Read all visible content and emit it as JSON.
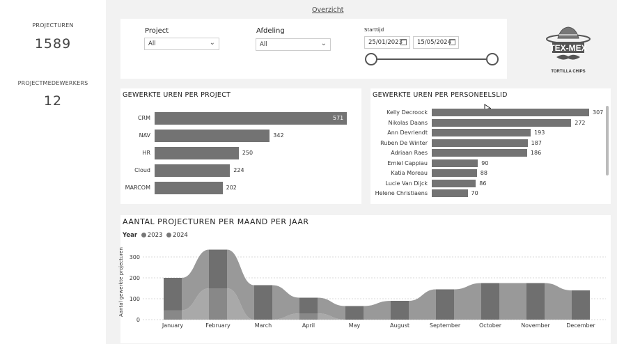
{
  "kpis": {
    "project_hours_label": "PROJECTUREN",
    "project_hours_value": "1589",
    "employees_label": "PROJECTMEDEWERKERS",
    "employees_value": "12"
  },
  "nav": {
    "overview_link": "Overzicht"
  },
  "filters": {
    "project_label": "Project",
    "project_value": "All",
    "department_label": "Afdeling",
    "department_value": "All",
    "start_label": "Starttijd",
    "date_from": "25/01/2023",
    "date_to": "15/05/2024"
  },
  "logo": {
    "line1": "TEX-MEX",
    "line2": "TORTILLA CHIPS"
  },
  "project_chart": {
    "title": "GEWERKTE UREN PER PROJECT",
    "bars": [
      {
        "label": "CRM",
        "value": 571
      },
      {
        "label": "NAV",
        "value": 342
      },
      {
        "label": "HR",
        "value": 250
      },
      {
        "label": "Cloud",
        "value": 224
      },
      {
        "label": "MARCOM",
        "value": 202
      }
    ]
  },
  "employee_chart": {
    "title": "GEWERKTE UREN PER PERSONEELSLID",
    "bars": [
      {
        "label": "Kelly Decroock",
        "value": 307
      },
      {
        "label": "Nikolas Daans",
        "value": 272
      },
      {
        "label": "Ann Devriendt",
        "value": 193
      },
      {
        "label": "Ruben De Winter",
        "value": 187
      },
      {
        "label": "Adriaan Raes",
        "value": 186
      },
      {
        "label": "Emiel Cappiau",
        "value": 90
      },
      {
        "label": "Katia Moreau",
        "value": 88
      },
      {
        "label": "Lucie Van Dijck",
        "value": 86
      },
      {
        "label": "Helene Christiaens",
        "value": 70
      }
    ]
  },
  "chart_data": {
    "type": "bar",
    "title": "AANTAL PROJECTUREN PER MAAND PER JAAR",
    "legend_title": "Year",
    "ylabel": "Aantal gewerkte projecturen",
    "ylim": [
      0,
      350
    ],
    "yticks": [
      0,
      100,
      200,
      300
    ],
    "categories": [
      "January",
      "February",
      "March",
      "April",
      "May",
      "August",
      "September",
      "October",
      "November",
      "December"
    ],
    "series": [
      {
        "name": "2023",
        "values": [
          45,
          150,
          0,
          30,
          0,
          0,
          0,
          0,
          0,
          0
        ]
      },
      {
        "name": "2024",
        "values": [
          155,
          185,
          165,
          75,
          65,
          90,
          145,
          175,
          175,
          140
        ]
      }
    ]
  }
}
